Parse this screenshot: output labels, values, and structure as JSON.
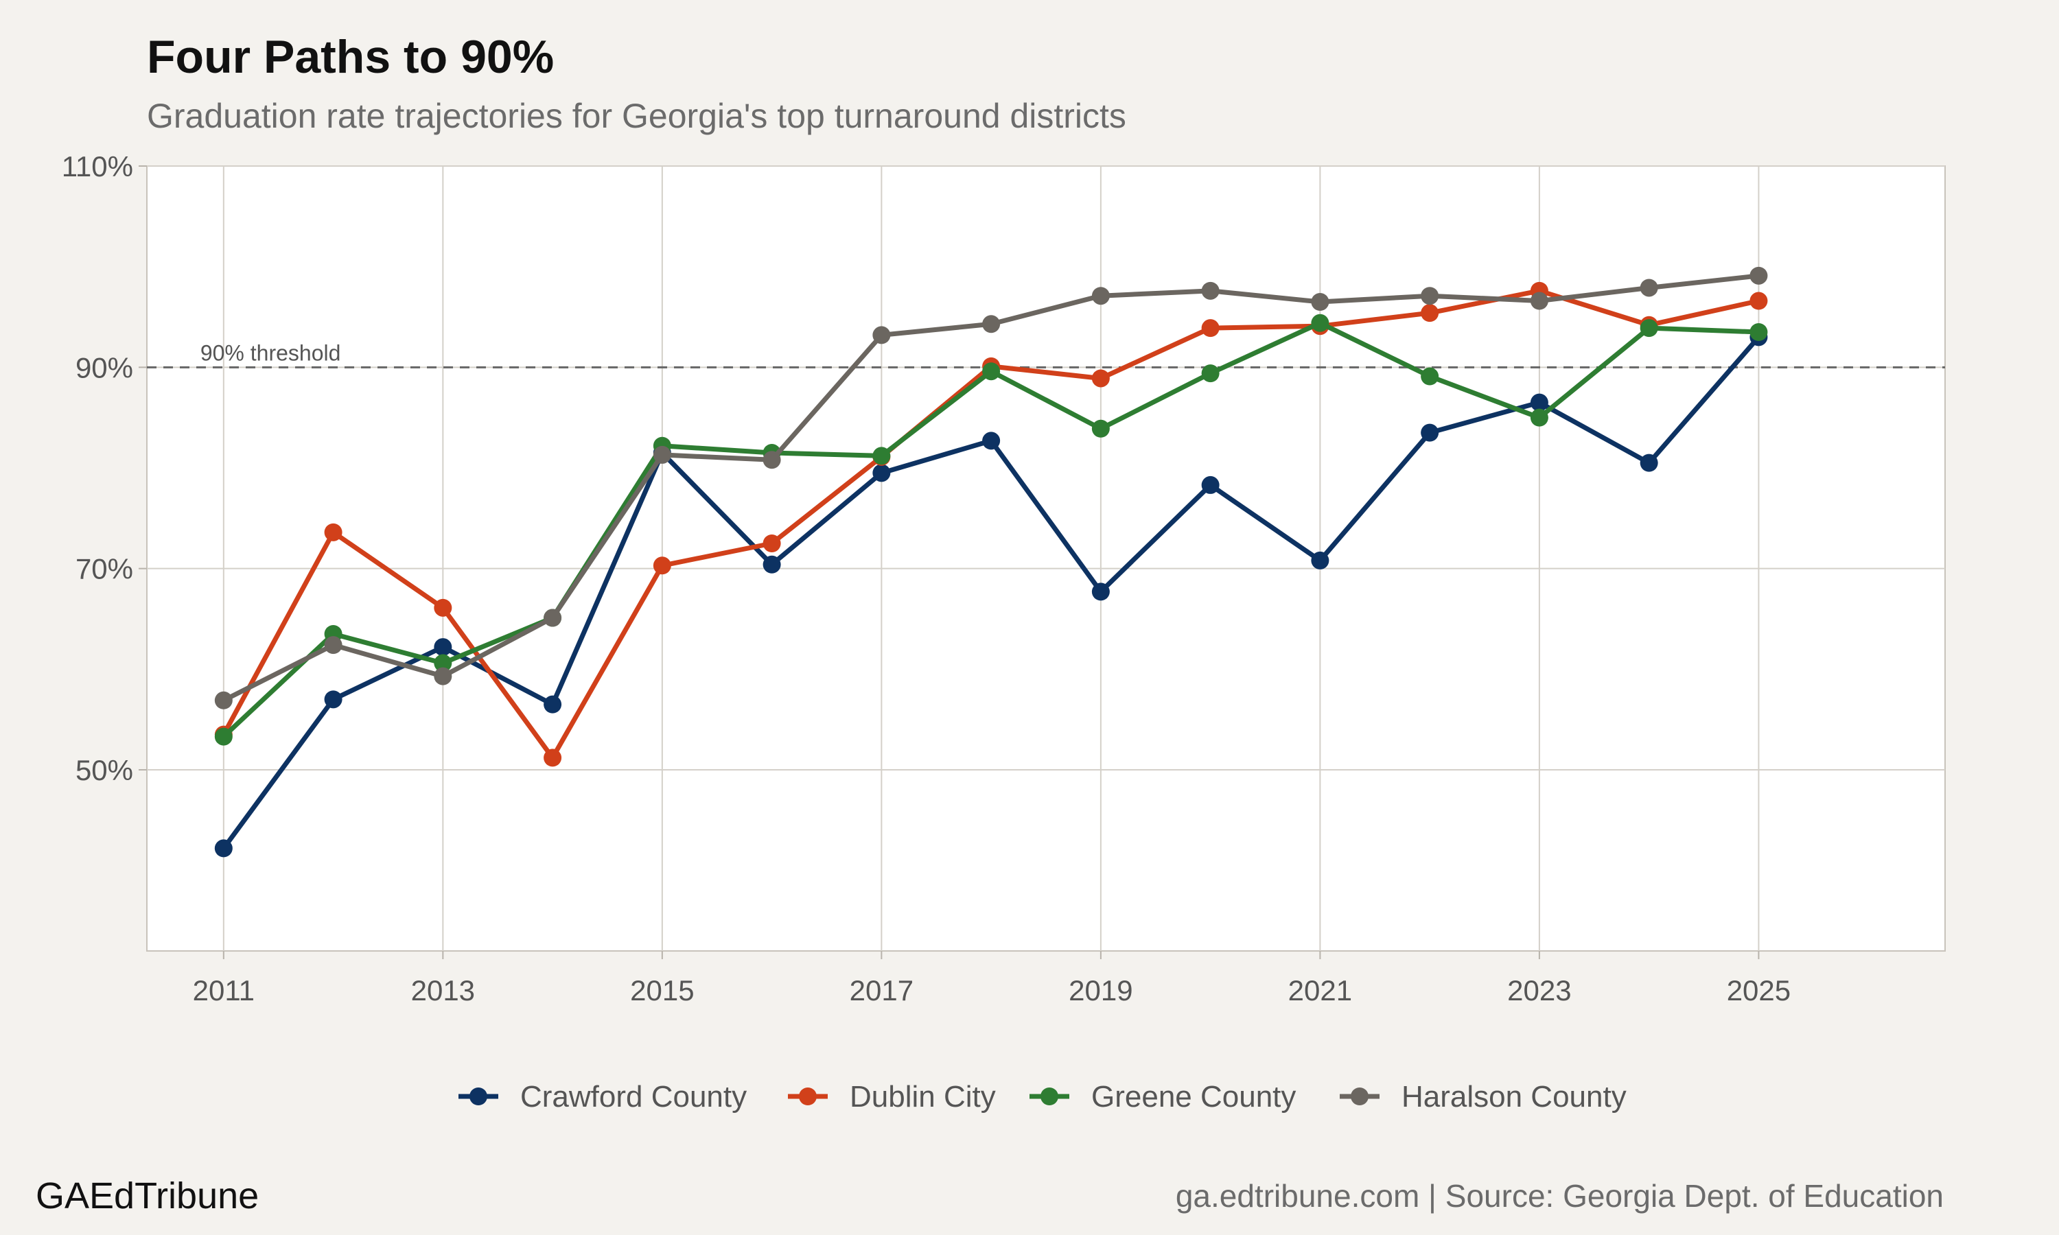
{
  "header": {
    "title": "Four Paths to 90%",
    "subtitle": "Graduation rate trajectories for Georgia's top turnaround districts"
  },
  "footer": {
    "brand": "GAEdTribune",
    "source": "ga.edtribune.com | Source: Georgia Dept. of Education"
  },
  "chart_data": {
    "type": "line",
    "x": [
      2011,
      2012,
      2013,
      2014,
      2015,
      2016,
      2017,
      2018,
      2019,
      2020,
      2021,
      2022,
      2023,
      2024,
      2025
    ],
    "xlim": [
      2010.3,
      2026.7
    ],
    "ylim": [
      32,
      110
    ],
    "x_ticks": [
      2011,
      2013,
      2015,
      2017,
      2019,
      2021,
      2023,
      2025
    ],
    "x_tick_labels": [
      "2011",
      "2013",
      "2015",
      "2017",
      "2019",
      "2021",
      "2023",
      "2025"
    ],
    "y_ticks": [
      50,
      70,
      90,
      110
    ],
    "y_tick_labels": [
      "50%",
      "70%",
      "90%",
      "110%"
    ],
    "grid": true,
    "legend_position": "bottom",
    "threshold": {
      "value": 90,
      "label": "90% threshold",
      "style": "dashed",
      "color": "#666666"
    },
    "series": [
      {
        "name": "Crawford County",
        "color": "#0d3262",
        "values": [
          42.2,
          57.0,
          62.2,
          56.5,
          81.5,
          70.4,
          79.5,
          82.7,
          67.7,
          78.3,
          70.8,
          83.5,
          86.5,
          80.5,
          93.0
        ]
      },
      {
        "name": "Dublin City",
        "color": "#d1401a",
        "values": [
          53.5,
          73.6,
          66.1,
          51.2,
          70.3,
          72.5,
          81.1,
          90.1,
          88.9,
          93.9,
          94.1,
          95.4,
          97.6,
          94.2,
          96.6
        ]
      },
      {
        "name": "Greene County",
        "color": "#2e7d32",
        "values": [
          53.3,
          63.5,
          60.6,
          65.1,
          82.2,
          81.5,
          81.2,
          89.6,
          83.9,
          89.4,
          94.4,
          89.1,
          85.0,
          93.9,
          93.5
        ]
      },
      {
        "name": "Haralson County",
        "color": "#6b6660",
        "values": [
          56.9,
          62.4,
          59.3,
          65.1,
          81.3,
          80.8,
          93.2,
          94.3,
          97.1,
          97.6,
          96.5,
          97.1,
          96.6,
          97.9,
          99.1
        ]
      }
    ]
  }
}
